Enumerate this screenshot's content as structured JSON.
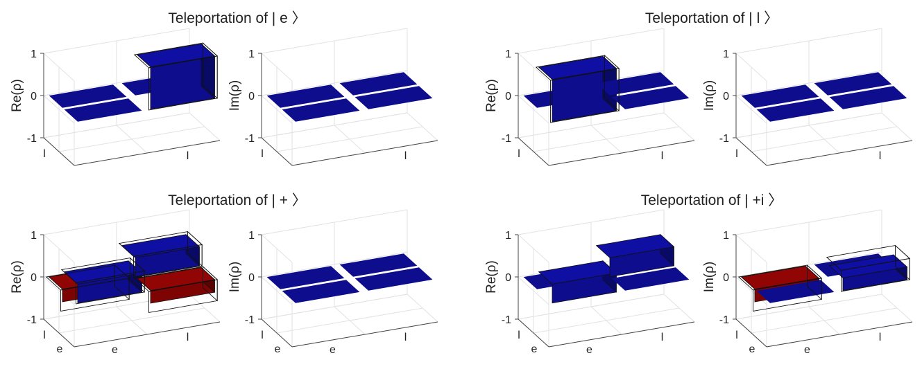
{
  "figure": {
    "groups": [
      {
        "title": "Teleportation of | e 〉"
      },
      {
        "title": "Teleportation of | l 〉"
      },
      {
        "title": "Teleportation of | + 〉"
      },
      {
        "title": "Teleportation of | +i 〉"
      }
    ],
    "colors": {
      "positive": "#0d0d8e",
      "negative": "#7e0404",
      "outline": "#111111"
    }
  },
  "chart_data": [
    {
      "type": "bar3d",
      "group": 0,
      "ylabel": "Re(ρ)",
      "ylim": [
        -1,
        1
      ],
      "yticks": [
        "1",
        "0",
        "-1"
      ],
      "row_labels": [
        "l"
      ],
      "col_labels": [
        "l"
      ],
      "values": [
        [
          0.0,
          0.0
        ],
        [
          0.0,
          1.0
        ]
      ],
      "ideal": [
        [
          0,
          0
        ],
        [
          0,
          1
        ]
      ]
    },
    {
      "type": "bar3d",
      "group": 0,
      "ylabel": "Im(ρ)",
      "ylim": [
        -1,
        1
      ],
      "yticks": [
        "1",
        "0",
        "-1"
      ],
      "row_labels": [
        "l"
      ],
      "col_labels": [
        "l"
      ],
      "values": [
        [
          0.0,
          0.0
        ],
        [
          0.0,
          0.0
        ]
      ],
      "ideal": null
    },
    {
      "type": "bar3d",
      "group": 1,
      "ylabel": "Re(ρ)",
      "ylim": [
        -1,
        1
      ],
      "yticks": [
        "1",
        "0",
        "-1"
      ],
      "row_labels": [
        "l"
      ],
      "col_labels": [
        "l"
      ],
      "values": [
        [
          0.0,
          0.0
        ],
        [
          1.0,
          0.0
        ]
      ],
      "ideal": [
        [
          0,
          0
        ],
        [
          1,
          0
        ]
      ]
    },
    {
      "type": "bar3d",
      "group": 1,
      "ylabel": "Im(ρ)",
      "ylim": [
        -1,
        1
      ],
      "yticks": [
        "1",
        "0",
        "-1"
      ],
      "row_labels": [
        "l"
      ],
      "col_labels": [
        "l"
      ],
      "values": [
        [
          0.0,
          0.0
        ],
        [
          0.0,
          0.0
        ]
      ],
      "ideal": null
    },
    {
      "type": "bar3d",
      "group": 2,
      "ylabel": "Re(ρ)",
      "ylim": [
        -1,
        1
      ],
      "yticks": [
        "1",
        "0",
        "-1"
      ],
      "row_labels": [
        "l",
        "e"
      ],
      "col_labels": [
        "e",
        "l"
      ],
      "values": [
        [
          -0.3,
          0.45
        ],
        [
          0.45,
          -0.3
        ]
      ],
      "ideal": [
        [
          -0.5,
          0.5
        ],
        [
          0.5,
          -0.5
        ]
      ]
    },
    {
      "type": "bar3d",
      "group": 2,
      "ylabel": "Im(ρ)",
      "ylim": [
        -1,
        1
      ],
      "yticks": [
        "1",
        "0",
        "-1"
      ],
      "row_labels": [
        "l",
        "e"
      ],
      "col_labels": [
        "e",
        "l"
      ],
      "values": [
        [
          0.0,
          0.0
        ],
        [
          0.0,
          0.0
        ]
      ],
      "ideal": null
    },
    {
      "type": "bar3d",
      "group": 3,
      "ylabel": "Re(ρ)",
      "ylim": [
        -1,
        1
      ],
      "yticks": [
        "1",
        "0",
        "-1"
      ],
      "row_labels": [
        "l",
        "e"
      ],
      "col_labels": [
        "e",
        "l"
      ],
      "values": [
        [
          0.0,
          0.45
        ],
        [
          0.45,
          0.0
        ]
      ],
      "ideal": null
    },
    {
      "type": "bar3d",
      "group": 3,
      "ylabel": "Im(ρ)",
      "ylim": [
        -1,
        1
      ],
      "yticks": [
        "1",
        "0",
        "-1"
      ],
      "row_labels": [
        "l",
        "e"
      ],
      "col_labels": [
        "e",
        "l"
      ],
      "values": [
        [
          -0.3,
          0.0
        ],
        [
          0.0,
          0.3
        ]
      ],
      "ideal": [
        [
          -0.5,
          0
        ],
        [
          0,
          0.5
        ]
      ]
    }
  ]
}
